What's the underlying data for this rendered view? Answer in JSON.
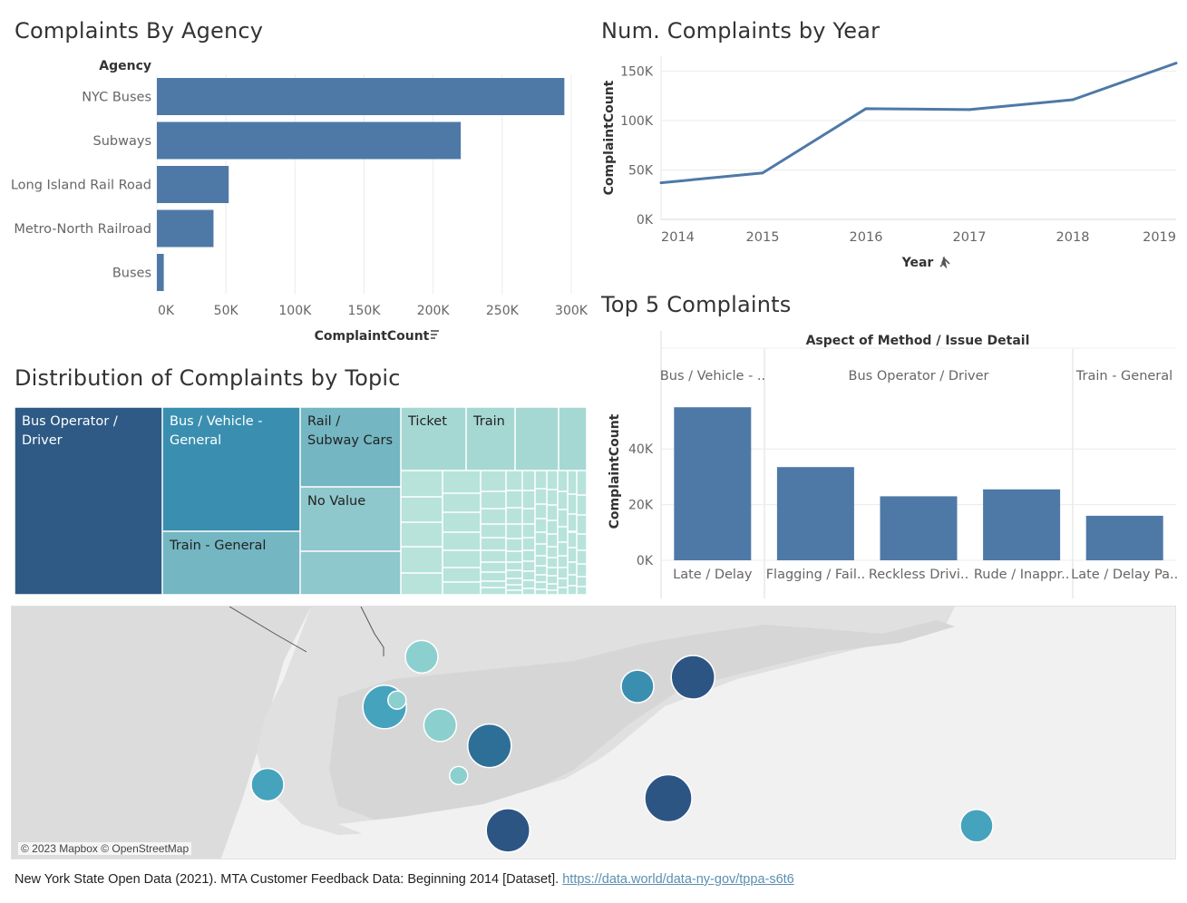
{
  "agency_panel": {
    "title": "Complaints By Agency",
    "pinned_icon": "sort-icon"
  },
  "year_panel": {
    "title": "Num. Complaints by Year",
    "pin_icon": "pin-icon"
  },
  "topic_panel": {
    "title": "Distribution of Complaints by Topic"
  },
  "top5_panel": {
    "title": "Top 5 Complaints"
  },
  "map_panel": {
    "attribution": "© 2023 Mapbox © OpenStreetMap",
    "points": [
      {
        "lon": 0.7,
        "lat": 0.72,
        "size": "medium",
        "level": "mid"
      },
      {
        "lon": 0.89,
        "lat": 0.38,
        "size": "large",
        "level": "mid"
      },
      {
        "lon": 0.91,
        "lat": 0.35,
        "size": "small",
        "level": "low"
      },
      {
        "lon": 0.95,
        "lat": 0.16,
        "size": "medium",
        "level": "low"
      },
      {
        "lon": 0.98,
        "lat": 0.46,
        "size": "medium",
        "level": "low"
      },
      {
        "lon": 1.01,
        "lat": 0.68,
        "size": "small",
        "level": "low"
      },
      {
        "lon": 1.06,
        "lat": 0.55,
        "size": "large",
        "level": "high"
      },
      {
        "lon": 1.09,
        "lat": 0.92,
        "size": "large",
        "level": "very-high"
      },
      {
        "lon": 1.3,
        "lat": 0.29,
        "size": "medium",
        "level": "mid-high"
      },
      {
        "lon": 1.35,
        "lat": 0.78,
        "size": "xlarge",
        "level": "very-high"
      },
      {
        "lon": 1.39,
        "lat": 0.25,
        "size": "large",
        "level": "very-high"
      },
      {
        "lon": 1.85,
        "lat": 0.9,
        "size": "medium",
        "level": "mid"
      }
    ]
  },
  "footer": {
    "citation": "New York State Open Data (2021). MTA Customer Feedback Data: Beginning 2014 [Dataset].",
    "link": "https://data.world/data-ny-gov/tppa-s6t6"
  },
  "colors": {
    "bar": "#4e79a7",
    "line": "#4e79a7",
    "grid": "#ececec",
    "axis_text": "#666666"
  },
  "chart_data": [
    {
      "type": "bar",
      "orientation": "horizontal",
      "title": "Complaints By Agency",
      "row_header": "Agency",
      "categories": [
        "NYC Buses",
        "Subways",
        "Long Island Rail Road",
        "Metro-North Railroad",
        "Buses"
      ],
      "values": [
        295000,
        220000,
        52000,
        41000,
        5000
      ],
      "xlabel": "ComplaintCount",
      "xlim": [
        0,
        300000
      ],
      "ticks": [
        0,
        50000,
        100000,
        150000,
        200000,
        250000,
        300000
      ],
      "tick_labels": [
        "0K",
        "50K",
        "100K",
        "150K",
        "200K",
        "250K",
        "300K"
      ],
      "grid": true
    },
    {
      "type": "line",
      "title": "Num. Complaints by Year",
      "x": [
        2014,
        2015,
        2016,
        2017,
        2018,
        2019
      ],
      "x_labels": [
        "2014",
        "2015",
        "2016",
        "2017",
        "2018",
        "2019"
      ],
      "values": [
        37000,
        47000,
        112000,
        111000,
        121000,
        158000
      ],
      "xlabel": "Year",
      "ylabel": "ComplaintCount",
      "ylim": [
        0,
        165000
      ],
      "ticks": [
        0,
        50000,
        100000,
        150000
      ],
      "tick_labels": [
        "0K",
        "50K",
        "100K",
        "150K"
      ],
      "grid": true
    },
    {
      "type": "heatmap",
      "subtype": "treemap",
      "title": "Distribution of Complaints by Topic",
      "labelled_tiles": [
        {
          "label": "Bus Operator / Driver",
          "level": 1
        },
        {
          "label": "Bus / Vehicle - General",
          "level": 2
        },
        {
          "label": "Train - General",
          "level": 3
        },
        {
          "label": "Rail / Subway Cars",
          "level": 3
        },
        {
          "label": "No Value",
          "level": 4
        },
        {
          "label": "Ticket",
          "level": 5
        },
        {
          "label": "Train",
          "level": 5
        }
      ]
    },
    {
      "type": "bar",
      "title": "Top 5 Complaints",
      "header": "Aspect of Method  /  Issue Detail",
      "groups": [
        {
          "label": "Bus / Vehicle - ..",
          "categories": [
            "Late / Delay"
          ],
          "values": [
            55000
          ]
        },
        {
          "label": "Bus Operator / Driver",
          "categories": [
            "Flagging / Fail..",
            "Reckless Drivi..",
            "Rude / Inappr.."
          ],
          "values": [
            33500,
            23000,
            25500
          ]
        },
        {
          "label": "Train - General",
          "categories": [
            "Late / Delay Pa.."
          ],
          "values": [
            16000
          ]
        }
      ],
      "ylabel": "ComplaintCount",
      "ylim": [
        0,
        58000
      ],
      "ticks": [
        0,
        20000,
        40000
      ],
      "tick_labels": [
        "0K",
        "20K",
        "40K"
      ],
      "grid": true
    }
  ]
}
